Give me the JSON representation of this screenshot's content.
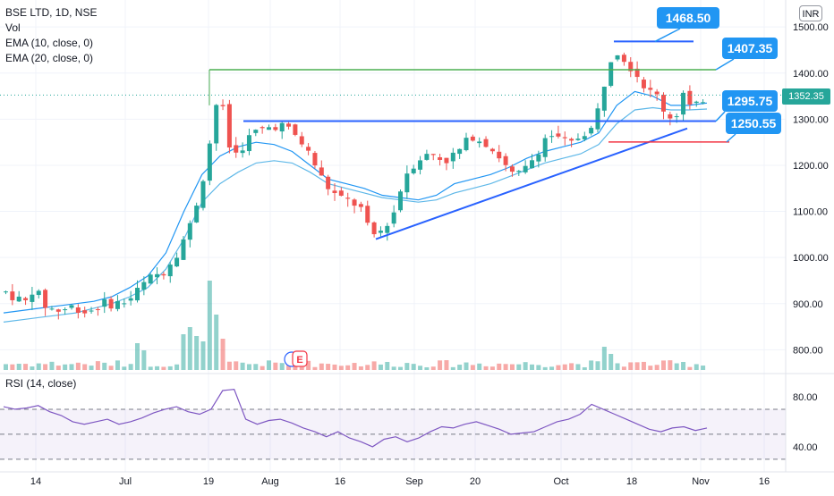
{
  "legend": {
    "symbol": "BSE LTD, 1D, NSE",
    "vol": "Vol",
    "ema10": "EMA (10, close, 0)",
    "ema20": "EMA (20, close, 0)",
    "rsi": "RSI (14, close)"
  },
  "currency_badge": "INR",
  "last_price_tag": "1352.35",
  "callouts": {
    "high": "1468.50",
    "resistance": "1407.35",
    "neckline": "1295.75",
    "support": "1250.55"
  },
  "events_badge": {
    "icons": [
      "earnings-icon",
      "event-icon"
    ],
    "e_label": "E"
  },
  "colors": {
    "up": "#26a69a",
    "down": "#ef5350",
    "ema10": "#2196f3",
    "ema20": "#5fb8e8",
    "trendline": "#2962ff",
    "resistance": "#4caf50",
    "support": "#f23645",
    "rsi": "#7e57c2",
    "callout": "#2196f3"
  },
  "chart_data": [
    {
      "type": "candlestick",
      "title": "BSE LTD, 1D, NSE",
      "currency": "INR",
      "ylim": [
        760,
        1510
      ],
      "y_ticks": [
        "1500.00",
        "1400.00",
        "1300.00",
        "1200.00",
        "1100.00",
        "1000.00",
        "900.00",
        "800.00"
      ],
      "x_ticks": [
        "14",
        "Jul",
        "19",
        "Aug",
        "16",
        "Sep",
        "20",
        "Oct",
        "18",
        "Nov",
        "16"
      ],
      "last_price": 1352.35,
      "series": [
        {
          "name": "EMA (10, close, 0)",
          "values": [
            880,
            885,
            890,
            895,
            900,
            905,
            915,
            935,
            960,
            1010,
            1100,
            1180,
            1220,
            1240,
            1250,
            1245,
            1230,
            1200,
            1170,
            1160,
            1150,
            1135,
            1130,
            1125,
            1135,
            1160,
            1170,
            1180,
            1195,
            1215,
            1230,
            1240,
            1250,
            1270,
            1330,
            1360,
            1350,
            1330,
            1330,
            1335
          ]
        },
        {
          "name": "EMA (20, close, 0)",
          "values": [
            860,
            865,
            870,
            875,
            880,
            890,
            900,
            915,
            935,
            975,
            1040,
            1120,
            1160,
            1185,
            1205,
            1210,
            1205,
            1185,
            1160,
            1150,
            1140,
            1130,
            1125,
            1120,
            1125,
            1140,
            1150,
            1160,
            1175,
            1190,
            1205,
            1215,
            1225,
            1245,
            1290,
            1320,
            1325,
            1320,
            1320,
            1322
          ]
        }
      ],
      "annotations": [
        {
          "label": "1468.50",
          "price": 1468.5
        },
        {
          "label": "1407.35",
          "price": 1407.35
        },
        {
          "label": "1295.75",
          "price": 1295.75
        },
        {
          "label": "1250.55",
          "price": 1250.55
        }
      ]
    },
    {
      "type": "line",
      "title": "RSI (14, close)",
      "ylim": [
        22,
        90
      ],
      "y_ticks": [
        "80.00",
        "40.00"
      ],
      "bands": [
        70,
        50,
        30
      ],
      "values": [
        72,
        70,
        71,
        73,
        68,
        65,
        60,
        58,
        60,
        62,
        58,
        60,
        63,
        67,
        70,
        72,
        68,
        66,
        70,
        85,
        86,
        62,
        58,
        61,
        62,
        59,
        55,
        52,
        48,
        52,
        47,
        44,
        40,
        46,
        48,
        44,
        47,
        52,
        56,
        55,
        58,
        60,
        57,
        54,
        50,
        51,
        52,
        56,
        60,
        62,
        66,
        74,
        70,
        66,
        62,
        58,
        54,
        52,
        55,
        56,
        53,
        55
      ]
    }
  ]
}
